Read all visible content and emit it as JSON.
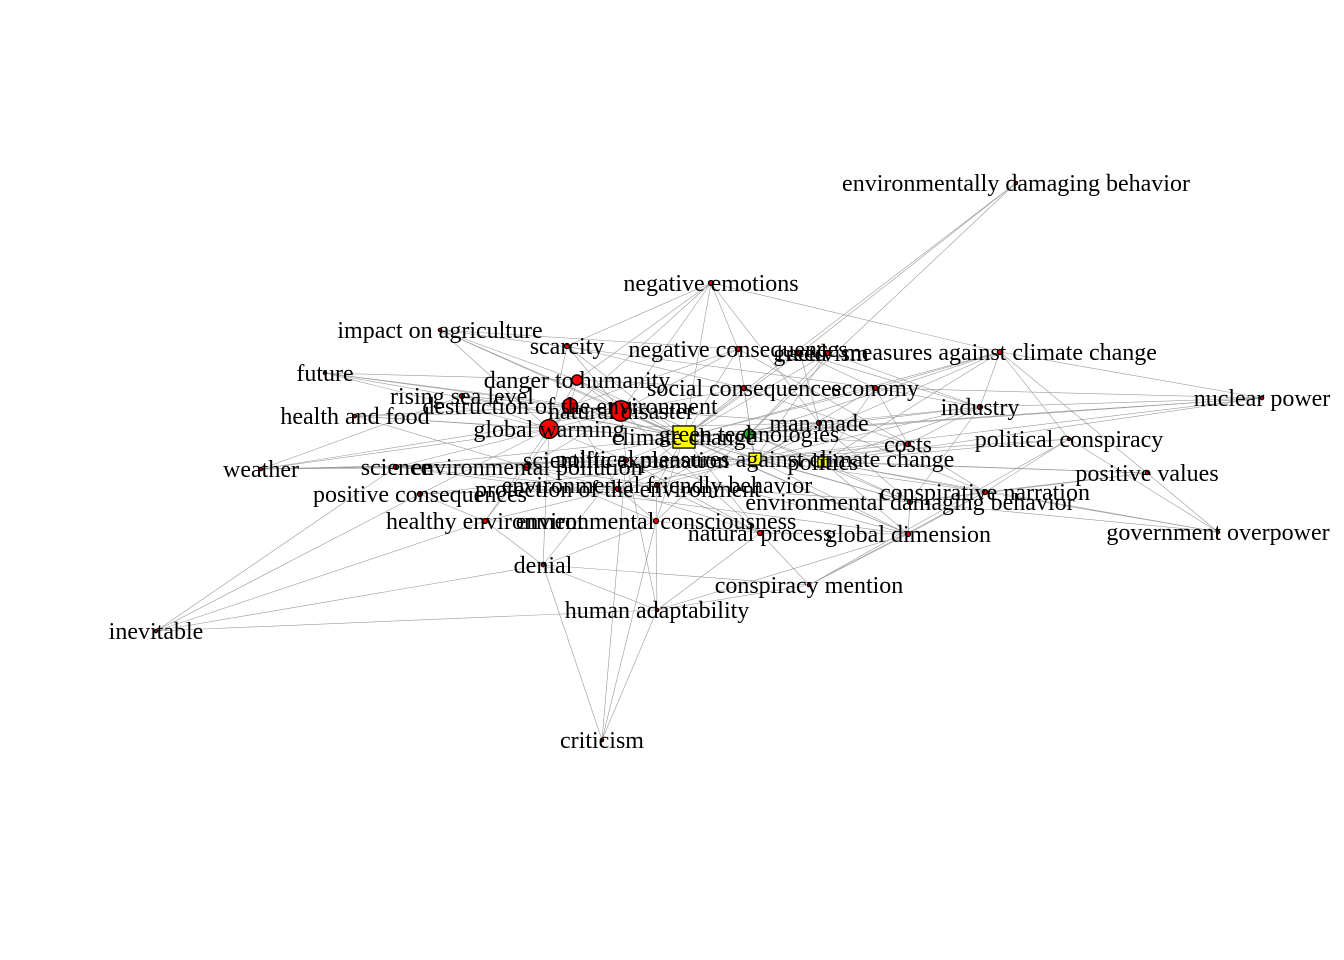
{
  "graph": {
    "colors": {
      "red": "#ff0000",
      "yellow": "#ffff00",
      "green": "#22aa22",
      "edge": "#9a9a9a"
    },
    "nodes": [
      {
        "id": "n1",
        "label": "environmentally damaging behavior",
        "color": "#ff0000",
        "shape": "circle",
        "size": 0
      },
      {
        "id": "n2",
        "label": "negative emotions",
        "color": "#ff0000",
        "shape": "circle",
        "size": 1
      },
      {
        "id": "n3",
        "label": "impact on agriculture",
        "color": "#ff0000",
        "shape": "circle",
        "size": 0
      },
      {
        "id": "n4",
        "label": "scarcity",
        "color": "#ff0000",
        "shape": "circle",
        "size": 1
      },
      {
        "id": "n5",
        "label": "negative consequences",
        "color": "#ff0000",
        "shape": "circle",
        "size": 1
      },
      {
        "id": "n6",
        "label": "activism",
        "color": "#ff0000",
        "shape": "circle",
        "size": 1
      },
      {
        "id": "n7",
        "label": "greed",
        "color": "#ff0000",
        "shape": "circle",
        "size": 1
      },
      {
        "id": "n8",
        "label": "measures against climate change",
        "color": "#ff0000",
        "shape": "circle",
        "size": 1
      },
      {
        "id": "n9",
        "label": "future",
        "color": "#ff0000",
        "shape": "circle",
        "size": 0
      },
      {
        "id": "n10",
        "label": "danger to humanity",
        "color": "#ff0000",
        "shape": "circle",
        "size": 6
      },
      {
        "id": "n11",
        "label": "rising sea level",
        "color": "#ff0000",
        "shape": "circle",
        "size": 1
      },
      {
        "id": "n12",
        "label": "social consequences",
        "color": "#ff0000",
        "shape": "circle",
        "size": 2
      },
      {
        "id": "n13",
        "label": "economy",
        "color": "#ff0000",
        "shape": "circle",
        "size": 1
      },
      {
        "id": "n14",
        "label": "nuclear power",
        "color": "#ff0000",
        "shape": "circle",
        "size": 0
      },
      {
        "id": "n15",
        "label": "destruction of the environment",
        "color": "#ff0000",
        "shape": "circle",
        "size": 9
      },
      {
        "id": "n16",
        "label": "natural disaster",
        "color": "#ff0000",
        "shape": "circle",
        "size": 12
      },
      {
        "id": "n17",
        "label": "health and food",
        "color": "#ff0000",
        "shape": "circle",
        "size": 0
      },
      {
        "id": "n18",
        "label": "industry",
        "color": "#ff0000",
        "shape": "circle",
        "size": 1
      },
      {
        "id": "n19",
        "label": "man made",
        "color": "#ff0000",
        "shape": "circle",
        "size": 2
      },
      {
        "id": "n20",
        "label": "global warming",
        "color": "#ff0000",
        "shape": "circle",
        "size": 11
      },
      {
        "id": "n21",
        "label": "climate change",
        "color": "#ffff00",
        "shape": "square",
        "size": 13
      },
      {
        "id": "n22",
        "label": "green technologies",
        "color": "#22aa22",
        "shape": "circle",
        "size": 6
      },
      {
        "id": "n23",
        "label": "costs",
        "color": "#ff0000",
        "shape": "circle",
        "size": 1
      },
      {
        "id": "n24",
        "label": "political conspiracy",
        "color": "#ff0000",
        "shape": "circle",
        "size": 0
      },
      {
        "id": "n25",
        "label": "weather",
        "color": "#ff0000",
        "shape": "circle",
        "size": 0
      },
      {
        "id": "n26",
        "label": "science",
        "color": "#ff0000",
        "shape": "circle",
        "size": 1
      },
      {
        "id": "n27",
        "label": "environmental pollution",
        "color": "#ff0000",
        "shape": "circle",
        "size": 4
      },
      {
        "id": "n28",
        "label": "scientific explanation",
        "color": "#ff0000",
        "shape": "circle",
        "size": 2
      },
      {
        "id": "n29",
        "label": "political measures against climate change",
        "color": "#ffff00",
        "shape": "square",
        "size": 7
      },
      {
        "id": "n30",
        "label": "politics",
        "color": "#ffff00",
        "shape": "square",
        "size": 6
      },
      {
        "id": "n31",
        "label": "positive values",
        "color": "#ff0000",
        "shape": "circle",
        "size": 0
      },
      {
        "id": "n32",
        "label": "positive consequences",
        "color": "#ff0000",
        "shape": "circle",
        "size": 1
      },
      {
        "id": "n33",
        "label": "protection of the environment",
        "color": "#ff0000",
        "shape": "circle",
        "size": 2
      },
      {
        "id": "n34",
        "label": "environmental friendly behavior",
        "color": "#ff0000",
        "shape": "circle",
        "size": 1
      },
      {
        "id": "n35",
        "label": "conspirative narration",
        "color": "#ff0000",
        "shape": "circle",
        "size": 1
      },
      {
        "id": "n36",
        "label": "environmental damaging behavior",
        "color": "#ff0000",
        "shape": "circle",
        "size": 1
      },
      {
        "id": "n37",
        "label": "healthy environment",
        "color": "#ff0000",
        "shape": "circle",
        "size": 1
      },
      {
        "id": "n38",
        "label": "environmental consciousness",
        "color": "#ff0000",
        "shape": "circle",
        "size": 1
      },
      {
        "id": "n39",
        "label": "natural process",
        "color": "#ff0000",
        "shape": "circle",
        "size": 1
      },
      {
        "id": "n40",
        "label": "global dimension",
        "color": "#ff0000",
        "shape": "circle",
        "size": 1
      },
      {
        "id": "n41",
        "label": "government overpower",
        "color": "#ff0000",
        "shape": "circle",
        "size": 0
      },
      {
        "id": "n42",
        "label": "denial",
        "color": "#ff0000",
        "shape": "circle",
        "size": 0
      },
      {
        "id": "n43",
        "label": "conspiracy mention",
        "color": "#ff0000",
        "shape": "circle",
        "size": 0
      },
      {
        "id": "n44",
        "label": "human adaptability",
        "color": "#ff0000",
        "shape": "circle",
        "size": 0
      },
      {
        "id": "n45",
        "label": "inevitable",
        "color": "#ff0000",
        "shape": "circle",
        "size": 0
      },
      {
        "id": "n46",
        "label": "criticism",
        "color": "#ff0000",
        "shape": "circle",
        "size": 0
      }
    ],
    "edges": [
      [
        "n1",
        "n7"
      ],
      [
        "n1",
        "n22"
      ],
      [
        "n1",
        "n21"
      ],
      [
        "n2",
        "n21"
      ],
      [
        "n2",
        "n10"
      ],
      [
        "n2",
        "n16"
      ],
      [
        "n2",
        "n20"
      ],
      [
        "n2",
        "n8"
      ],
      [
        "n2",
        "n19"
      ],
      [
        "n2",
        "n5"
      ],
      [
        "n2",
        "n4"
      ],
      [
        "n3",
        "n16"
      ],
      [
        "n3",
        "n20"
      ],
      [
        "n3",
        "n21"
      ],
      [
        "n3",
        "n10"
      ],
      [
        "n3",
        "n5"
      ],
      [
        "n3",
        "n13"
      ],
      [
        "n4",
        "n16"
      ],
      [
        "n4",
        "n20"
      ],
      [
        "n4",
        "n21"
      ],
      [
        "n4",
        "n12"
      ],
      [
        "n5",
        "n21"
      ],
      [
        "n5",
        "n16"
      ],
      [
        "n5",
        "n15"
      ],
      [
        "n5",
        "n29"
      ],
      [
        "n5",
        "n23"
      ],
      [
        "n6",
        "n21"
      ],
      [
        "n6",
        "n22"
      ],
      [
        "n6",
        "n29"
      ],
      [
        "n6",
        "n18"
      ],
      [
        "n7",
        "n21"
      ],
      [
        "n7",
        "n13"
      ],
      [
        "n7",
        "n18"
      ],
      [
        "n7",
        "n19"
      ],
      [
        "n8",
        "n21"
      ],
      [
        "n8",
        "n22"
      ],
      [
        "n8",
        "n29"
      ],
      [
        "n8",
        "n30"
      ],
      [
        "n8",
        "n13"
      ],
      [
        "n8",
        "n18"
      ],
      [
        "n8",
        "n24"
      ],
      [
        "n8",
        "n31"
      ],
      [
        "n9",
        "n16"
      ],
      [
        "n9",
        "n20"
      ],
      [
        "n9",
        "n21"
      ],
      [
        "n9",
        "n15"
      ],
      [
        "n9",
        "n10"
      ],
      [
        "n10",
        "n21"
      ],
      [
        "n10",
        "n16"
      ],
      [
        "n10",
        "n20"
      ],
      [
        "n10",
        "n15"
      ],
      [
        "n10",
        "n12"
      ],
      [
        "n10",
        "n29"
      ],
      [
        "n11",
        "n16"
      ],
      [
        "n11",
        "n20"
      ],
      [
        "n11",
        "n21"
      ],
      [
        "n11",
        "n15"
      ],
      [
        "n11",
        "n25"
      ],
      [
        "n12",
        "n21"
      ],
      [
        "n12",
        "n16"
      ],
      [
        "n12",
        "n13"
      ],
      [
        "n12",
        "n29"
      ],
      [
        "n12",
        "n23"
      ],
      [
        "n13",
        "n21"
      ],
      [
        "n13",
        "n29"
      ],
      [
        "n13",
        "n30"
      ],
      [
        "n13",
        "n18"
      ],
      [
        "n13",
        "n23"
      ],
      [
        "n14",
        "n21"
      ],
      [
        "n14",
        "n22"
      ],
      [
        "n14",
        "n29"
      ],
      [
        "n14",
        "n18"
      ],
      [
        "n14",
        "n13"
      ],
      [
        "n14",
        "n30"
      ],
      [
        "n14",
        "n8"
      ],
      [
        "n15",
        "n21"
      ],
      [
        "n15",
        "n16"
      ],
      [
        "n15",
        "n20"
      ],
      [
        "n15",
        "n27"
      ],
      [
        "n15",
        "n33"
      ],
      [
        "n15",
        "n19"
      ],
      [
        "n15",
        "n36"
      ],
      [
        "n16",
        "n21"
      ],
      [
        "n16",
        "n20"
      ],
      [
        "n16",
        "n25"
      ],
      [
        "n16",
        "n28"
      ],
      [
        "n16",
        "n27"
      ],
      [
        "n16",
        "n39"
      ],
      [
        "n16",
        "n40"
      ],
      [
        "n17",
        "n16"
      ],
      [
        "n17",
        "n20"
      ],
      [
        "n17",
        "n21"
      ],
      [
        "n17",
        "n15"
      ],
      [
        "n17",
        "n27"
      ],
      [
        "n18",
        "n21"
      ],
      [
        "n18",
        "n22"
      ],
      [
        "n18",
        "n29"
      ],
      [
        "n18",
        "n30"
      ],
      [
        "n18",
        "n23"
      ],
      [
        "n18",
        "n36"
      ],
      [
        "n19",
        "n21"
      ],
      [
        "n19",
        "n20"
      ],
      [
        "n19",
        "n29"
      ],
      [
        "n19",
        "n35"
      ],
      [
        "n19",
        "n36"
      ],
      [
        "n20",
        "n21"
      ],
      [
        "n20",
        "n25"
      ],
      [
        "n20",
        "n26"
      ],
      [
        "n20",
        "n28"
      ],
      [
        "n20",
        "n32"
      ],
      [
        "n20",
        "n37"
      ],
      [
        "n20",
        "n42"
      ],
      [
        "n21",
        "n22"
      ],
      [
        "n21",
        "n29"
      ],
      [
        "n21",
        "n30"
      ],
      [
        "n21",
        "n27"
      ],
      [
        "n21",
        "n28"
      ],
      [
        "n21",
        "n33"
      ],
      [
        "n21",
        "n34"
      ],
      [
        "n21",
        "n38"
      ],
      [
        "n21",
        "n39"
      ],
      [
        "n21",
        "n40"
      ],
      [
        "n21",
        "n26"
      ],
      [
        "n22",
        "n29"
      ],
      [
        "n22",
        "n30"
      ],
      [
        "n22",
        "n33"
      ],
      [
        "n22",
        "n34"
      ],
      [
        "n22",
        "n38"
      ],
      [
        "n22",
        "n36"
      ],
      [
        "n22",
        "n23"
      ],
      [
        "n23",
        "n29"
      ],
      [
        "n23",
        "n30"
      ],
      [
        "n23",
        "n35"
      ],
      [
        "n24",
        "n30"
      ],
      [
        "n24",
        "n35"
      ],
      [
        "n24",
        "n41"
      ],
      [
        "n24",
        "n43"
      ],
      [
        "n24",
        "n29"
      ],
      [
        "n25",
        "n27"
      ],
      [
        "n25",
        "n28"
      ],
      [
        "n25",
        "n29"
      ],
      [
        "n25",
        "n26"
      ],
      [
        "n26",
        "n28"
      ],
      [
        "n26",
        "n27"
      ],
      [
        "n26",
        "n33"
      ],
      [
        "n26",
        "n40"
      ],
      [
        "n27",
        "n29"
      ],
      [
        "n27",
        "n33"
      ],
      [
        "n27",
        "n34"
      ],
      [
        "n27",
        "n37"
      ],
      [
        "n27",
        "n38"
      ],
      [
        "n28",
        "n29"
      ],
      [
        "n28",
        "n39"
      ],
      [
        "n28",
        "n40"
      ],
      [
        "n28",
        "n42"
      ],
      [
        "n28",
        "n44"
      ],
      [
        "n29",
        "n30"
      ],
      [
        "n29",
        "n33"
      ],
      [
        "n29",
        "n34"
      ],
      [
        "n29",
        "n35"
      ],
      [
        "n29",
        "n36"
      ],
      [
        "n29",
        "n40"
      ],
      [
        "n29",
        "n31"
      ],
      [
        "n30",
        "n35"
      ],
      [
        "n30",
        "n36"
      ],
      [
        "n30",
        "n41"
      ],
      [
        "n30",
        "n31"
      ],
      [
        "n30",
        "n40"
      ],
      [
        "n31",
        "n35"
      ],
      [
        "n31",
        "n36"
      ],
      [
        "n31",
        "n41"
      ],
      [
        "n32",
        "n33"
      ],
      [
        "n32",
        "n34"
      ],
      [
        "n32",
        "n37"
      ],
      [
        "n32",
        "n29"
      ],
      [
        "n33",
        "n34"
      ],
      [
        "n33",
        "n37"
      ],
      [
        "n33",
        "n38"
      ],
      [
        "n33",
        "n39"
      ],
      [
        "n34",
        "n38"
      ],
      [
        "n34",
        "n36"
      ],
      [
        "n34",
        "n39"
      ],
      [
        "n35",
        "n36"
      ],
      [
        "n35",
        "n41"
      ],
      [
        "n35",
        "n43"
      ],
      [
        "n35",
        "n40"
      ],
      [
        "n36",
        "n40"
      ],
      [
        "n36",
        "n41"
      ],
      [
        "n37",
        "n38"
      ],
      [
        "n37",
        "n42"
      ],
      [
        "n37",
        "n45"
      ],
      [
        "n38",
        "n39"
      ],
      [
        "n38",
        "n42"
      ],
      [
        "n38",
        "n44"
      ],
      [
        "n39",
        "n40"
      ],
      [
        "n39",
        "n43"
      ],
      [
        "n39",
        "n44"
      ],
      [
        "n40",
        "n43"
      ],
      [
        "n40",
        "n44"
      ],
      [
        "n42",
        "n44"
      ],
      [
        "n42",
        "n45"
      ],
      [
        "n42",
        "n46"
      ],
      [
        "n42",
        "n43"
      ],
      [
        "n44",
        "n46"
      ],
      [
        "n44",
        "n43"
      ],
      [
        "n44",
        "n45"
      ],
      [
        "n45",
        "n32"
      ],
      [
        "n45",
        "n26"
      ],
      [
        "n46",
        "n38"
      ],
      [
        "n46",
        "n28"
      ]
    ]
  }
}
